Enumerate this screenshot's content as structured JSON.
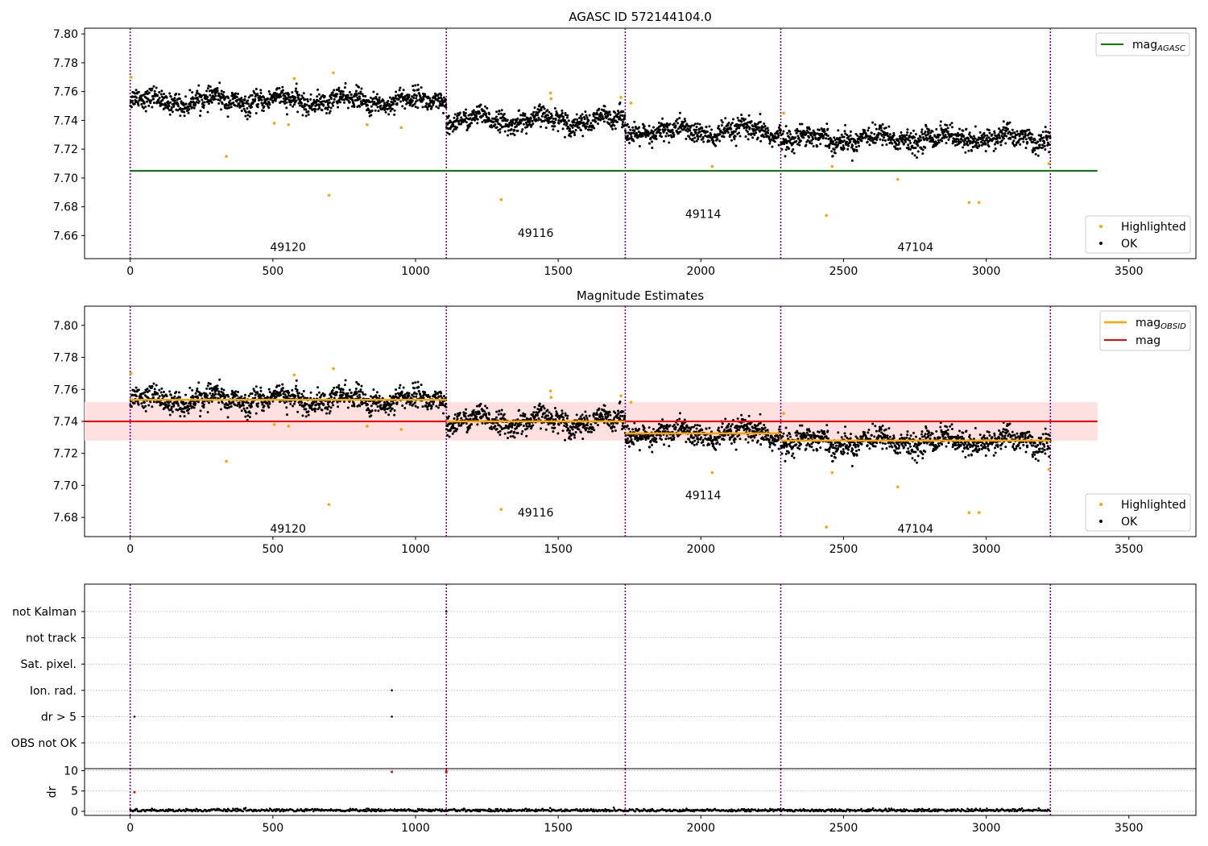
{
  "obs_boundaries": [
    0,
    1108,
    1735,
    2280,
    3225
  ],
  "obs_labels": [
    {
      "text": "49120",
      "x": 553,
      "y_top": 7.652,
      "y_mid": 7.673
    },
    {
      "text": "49116",
      "x": 1421,
      "y_top": 7.662,
      "y_mid": 7.683
    },
    {
      "text": "49114",
      "x": 2008,
      "y_top": 7.675,
      "y_mid": 7.694
    },
    {
      "text": "47104",
      "x": 2752,
      "y_top": 7.652,
      "y_mid": 7.673
    }
  ],
  "chart_data": [
    {
      "type": "scatter",
      "title": "AGASC ID 572144104.0",
      "xlim": [
        -160,
        3735
      ],
      "ylim": [
        7.644,
        7.804
      ],
      "x_ticks": [
        0,
        500,
        1000,
        1500,
        2000,
        2500,
        3000,
        3500
      ],
      "y_ticks": [
        7.66,
        7.68,
        7.7,
        7.72,
        7.74,
        7.76,
        7.78,
        7.8
      ],
      "mag_agasc": 7.705,
      "mag_agasc_xrange": [
        0,
        3390
      ],
      "ok_segments": [
        {
          "x": [
            0,
            1108
          ],
          "mean": 7.7535,
          "spread": 0.0045
        },
        {
          "x": [
            1108,
            1735
          ],
          "mean": 7.74,
          "spread": 0.0045
        },
        {
          "x": [
            1735,
            2280
          ],
          "mean": 7.732,
          "spread": 0.0048
        },
        {
          "x": [
            2280,
            3225
          ],
          "mean": 7.7275,
          "spread": 0.0048
        }
      ],
      "highlighted_points": [
        {
          "x": 3,
          "y": 7.77
        },
        {
          "x": 337,
          "y": 7.715
        },
        {
          "x": 505,
          "y": 7.738
        },
        {
          "x": 555,
          "y": 7.737
        },
        {
          "x": 575,
          "y": 7.769
        },
        {
          "x": 697,
          "y": 7.688
        },
        {
          "x": 712,
          "y": 7.773
        },
        {
          "x": 830,
          "y": 7.737
        },
        {
          "x": 950,
          "y": 7.735
        },
        {
          "x": 1300,
          "y": 7.685
        },
        {
          "x": 1473,
          "y": 7.759
        },
        {
          "x": 1475,
          "y": 7.755
        },
        {
          "x": 1720,
          "y": 7.756
        },
        {
          "x": 1755,
          "y": 7.752
        },
        {
          "x": 2040,
          "y": 7.708
        },
        {
          "x": 2290,
          "y": 7.745
        },
        {
          "x": 2440,
          "y": 7.674
        },
        {
          "x": 2460,
          "y": 7.708
        },
        {
          "x": 2690,
          "y": 7.699
        },
        {
          "x": 2940,
          "y": 7.683
        },
        {
          "x": 2975,
          "y": 7.683
        },
        {
          "x": 3220,
          "y": 7.71
        }
      ],
      "legend_upper": [
        "mag",
        "AGASC"
      ],
      "legend_lower": [
        "Highlighted",
        "OK"
      ],
      "colors": {
        "ok": "#000000",
        "highlighted": "#ffa500",
        "agasc": "#008000",
        "obs_line": "#800080"
      }
    },
    {
      "type": "scatter",
      "title": "Magnitude Estimates",
      "xlim": [
        -160,
        3735
      ],
      "ylim": [
        7.668,
        7.812
      ],
      "x_ticks": [
        0,
        500,
        1000,
        1500,
        2000,
        2500,
        3000,
        3500
      ],
      "y_ticks": [
        7.68,
        7.7,
        7.72,
        7.74,
        7.76,
        7.78,
        7.8
      ],
      "mag": 7.74,
      "mag_band": [
        7.728,
        7.752
      ],
      "mag_xrange": [
        -160,
        3390
      ],
      "mag_obsid": [
        {
          "x": [
            0,
            1108
          ],
          "y": 7.7535
        },
        {
          "x": [
            1108,
            1735
          ],
          "y": 7.74
        },
        {
          "x": [
            1735,
            2280
          ],
          "y": 7.7325
        },
        {
          "x": [
            2280,
            3225
          ],
          "y": 7.728
        }
      ],
      "legend_upper": [
        [
          "mag",
          "OBSID"
        ],
        [
          "mag",
          ""
        ]
      ],
      "legend_lower": [
        "Highlighted",
        "OK"
      ],
      "colors": {
        "mag": "#ff0000",
        "band": "#ffe0e0",
        "mag_obsid": "#ffa500"
      }
    },
    {
      "type": "scatter",
      "title": "",
      "xlim": [
        -160,
        3735
      ],
      "categories": [
        "not Kalman",
        "not track",
        "Sat. pixel.",
        "Ion. rad.",
        "dr > 5",
        "OBS not OK"
      ],
      "flag_points": [
        {
          "x": 15,
          "cat": "dr > 5"
        },
        {
          "x": 917,
          "cat": "Ion. rad."
        },
        {
          "x": 917,
          "cat": "dr > 5"
        },
        {
          "x": 1108,
          "cat": "not Kalman"
        }
      ]
    },
    {
      "type": "scatter",
      "title": "",
      "xlim": [
        -160,
        3735
      ],
      "ylim": [
        -1,
        10.5
      ],
      "ylabel": "dr",
      "x_ticks": [
        0,
        500,
        1000,
        1500,
        2000,
        2500,
        3000,
        3500
      ],
      "y_ticks": [
        0,
        5,
        10
      ],
      "baseline_mean": 0.25,
      "red_points": [
        {
          "x": 15,
          "y": 4.7
        },
        {
          "x": 917,
          "y": 9.7
        },
        {
          "x": 1108,
          "y": 9.6
        },
        {
          "x": 1108,
          "y": 9.9
        }
      ]
    }
  ]
}
